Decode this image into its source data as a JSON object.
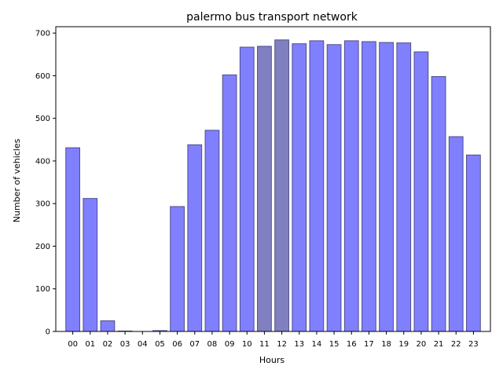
{
  "chart_data": {
    "type": "bar",
    "title": "palermo bus transport network",
    "xlabel": "Hours",
    "ylabel": "Number of vehicles",
    "categories": [
      "00",
      "01",
      "02",
      "03",
      "04",
      "05",
      "06",
      "07",
      "08",
      "09",
      "10",
      "11",
      "12",
      "13",
      "14",
      "15",
      "16",
      "17",
      "18",
      "19",
      "20",
      "21",
      "22",
      "23"
    ],
    "values": [
      431,
      312,
      25,
      1,
      0,
      2,
      293,
      438,
      472,
      602,
      667,
      669,
      684,
      675,
      682,
      673,
      682,
      680,
      678,
      677,
      656,
      598,
      457,
      414
    ],
    "highlight": [
      "11",
      "12"
    ],
    "ylim": [
      0,
      715
    ],
    "yticks": [
      0,
      100,
      200,
      300,
      400,
      500,
      600,
      700
    ],
    "grid": false,
    "colors": {
      "bar": "#8080ff",
      "bar_highlight": "#8080c0",
      "bar_edge": "#4d4d8c",
      "axis": "#000000"
    }
  }
}
